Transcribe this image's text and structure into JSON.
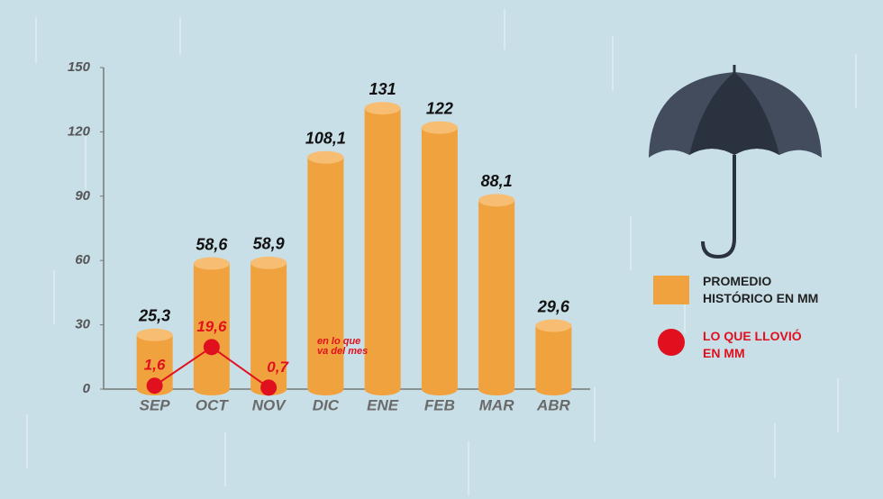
{
  "chart_data": {
    "type": "bar",
    "categories": [
      "SEP",
      "OCT",
      "NOV",
      "DIC",
      "ENE",
      "FEB",
      "MAR",
      "ABR"
    ],
    "series": [
      {
        "name": "PROMEDIO HISTÓRICO EN MM",
        "color": "#f0a23e",
        "type": "bar",
        "values": [
          25.3,
          58.6,
          58.9,
          108.1,
          131,
          122,
          88.1,
          29.6
        ],
        "value_labels": [
          "25,3",
          "58,6",
          "58,9",
          "108,1",
          "131",
          "122",
          "88,1",
          "29,6"
        ]
      },
      {
        "name": "LO QUE LLOVIÓ EN MM",
        "color": "#e0101e",
        "type": "line",
        "values": [
          1.6,
          19.6,
          0.7,
          null,
          null,
          null,
          null,
          null
        ],
        "value_labels": [
          "1,6",
          "19,6",
          "0,7",
          null,
          null,
          null,
          null,
          null
        ]
      }
    ],
    "annotation": "en lo que va del mes",
    "ylim": [
      0,
      150
    ],
    "yticks": [
      0,
      30,
      60,
      90,
      120,
      150
    ],
    "grid": false,
    "legend": "right"
  }
}
